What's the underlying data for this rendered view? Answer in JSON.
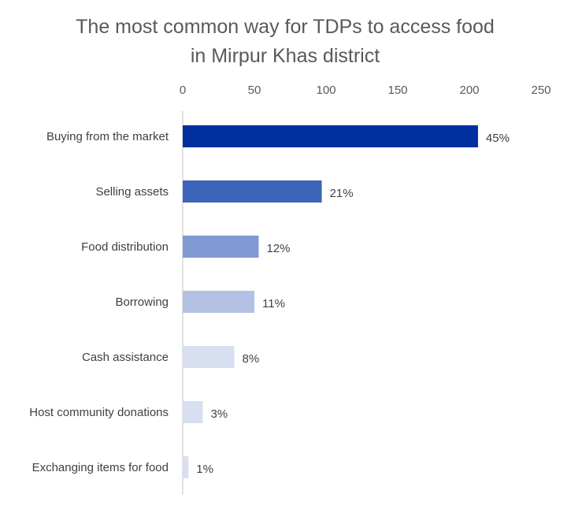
{
  "chart_data": {
    "type": "bar",
    "orientation": "horizontal",
    "title_lines": [
      "The most common way for TDPs to access food",
      "in Mirpur Khas district"
    ],
    "xlim": [
      0,
      250
    ],
    "x_ticks": [
      "0",
      "50",
      "100",
      "150",
      "200",
      "250"
    ],
    "x_axis_position": "top",
    "grid": false,
    "legend": "none",
    "categories": [
      "Buying from the market",
      "Selling assets",
      "Food distribution",
      "Borrowing",
      "Cash assistance",
      "Host community donations",
      "Exchanging items for food"
    ],
    "values": [
      206,
      97,
      53,
      50,
      36,
      14,
      4
    ],
    "data_labels": [
      "45%",
      "21%",
      "12%",
      "11%",
      "8%",
      "3%",
      "1%"
    ],
    "colors": [
      "#002f9e",
      "#3d64b8",
      "#8199d3",
      "#b3c1e4",
      "#d7dff1",
      "#d7dff1",
      "#d7dff1"
    ]
  }
}
